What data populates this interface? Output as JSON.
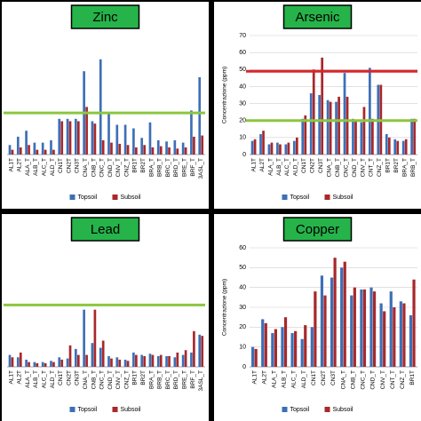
{
  "chart_data": [
    {
      "type": "bar",
      "title": "Zinc",
      "categories": [
        "AL1T",
        "AL2T",
        "ALA_T",
        "ALB_T",
        "ALC_T",
        "ALD_T",
        "CN1T",
        "CN2T",
        "CN3T",
        "CNA_T",
        "CNB_T",
        "CNC_T",
        "CND_T",
        "CNV_T",
        "CNZ_T",
        "BR1T",
        "BR2T",
        "BRA_T",
        "BRB_T",
        "BRC_T",
        "BRD_T",
        "BRE_T",
        "BRF_T",
        "3ASL_T"
      ],
      "series": [
        {
          "name": "Topsoil",
          "color": "#3d6fb6",
          "values": [
            8,
            15,
            20,
            10,
            10,
            12,
            30,
            30,
            30,
            70,
            28,
            80,
            35,
            25,
            25,
            22,
            14,
            27,
            12,
            11,
            12,
            10,
            37,
            65
          ]
        },
        {
          "name": "Subsoil",
          "color": "#a8282b",
          "values": [
            4,
            6,
            8,
            4,
            4,
            4,
            28,
            28,
            28,
            40,
            26,
            12,
            10,
            9,
            8,
            6,
            8,
            6,
            7,
            6,
            5,
            6,
            15,
            16
          ]
        }
      ],
      "ylim": [
        0,
        100
      ],
      "thresholds": [
        {
          "value": 35,
          "color": "#8cc63f"
        }
      ]
    },
    {
      "type": "bar",
      "title": "Arsenic",
      "y_label": "Concentrazione (ppm)",
      "categories": [
        "AL1T",
        "AL2T",
        "ALA_T",
        "ALB_T",
        "ALC_T",
        "ALD_T",
        "CN1T",
        "CN2T",
        "CN3T",
        "CNA_T",
        "CNB_T",
        "CNC_T",
        "CND_T",
        "CNV_T",
        "CNT_T",
        "CNZ_T",
        "BR1T",
        "BR2T",
        "BRA_T",
        "BRB_T"
      ],
      "series": [
        {
          "name": "Topsoil",
          "color": "#3d6fb6",
          "values": [
            8,
            12,
            6,
            7,
            6,
            8,
            21,
            36,
            35,
            32,
            31,
            48,
            21,
            19,
            51,
            41,
            12,
            9,
            8,
            21
          ]
        },
        {
          "name": "Subsoil",
          "color": "#a8282b",
          "values": [
            9,
            14,
            7,
            6,
            7,
            10,
            23,
            50,
            57,
            31,
            34,
            34,
            20,
            28,
            21,
            41,
            10,
            8,
            9,
            21
          ]
        }
      ],
      "ylim": [
        0,
        70
      ],
      "yticks": [
        0,
        10,
        20,
        30,
        40,
        50,
        60,
        70
      ],
      "grid": true,
      "thresholds": [
        {
          "value": 49,
          "color": "#d8262b"
        },
        {
          "value": 20,
          "color": "#8cc63f"
        }
      ]
    },
    {
      "type": "bar",
      "title": "Lead",
      "categories": [
        "AL1T",
        "AL2T",
        "ALA_T",
        "ALB_T",
        "ALC_T",
        "ALD_T",
        "CN1T",
        "CN2T",
        "CN3T",
        "CNA_T",
        "CNB_T",
        "CNC_T",
        "CND_T",
        "CNV_T",
        "CNZ_T",
        "BR1T",
        "BR2T",
        "BRA_T",
        "BRB_T",
        "BRC_T",
        "BRD_T",
        "BRE_T",
        "BRF_T",
        "3ASL_T"
      ],
      "series": [
        {
          "name": "Topsoil",
          "color": "#3d6fb6",
          "values": [
            10,
            8,
            6,
            4,
            4,
            5,
            8,
            7,
            15,
            48,
            20,
            16,
            9,
            8,
            6,
            12,
            10,
            11,
            9,
            9,
            8,
            10,
            12,
            27
          ]
        },
        {
          "name": "Subsoil",
          "color": "#a8282b",
          "values": [
            8,
            12,
            4,
            3,
            3,
            4,
            6,
            18,
            10,
            10,
            48,
            22,
            7,
            6,
            5,
            10,
            9,
            10,
            10,
            9,
            12,
            14,
            30,
            26
          ]
        }
      ],
      "ylim": [
        0,
        100
      ],
      "thresholds": [
        {
          "value": 52,
          "color": "#8cc63f"
        }
      ]
    },
    {
      "type": "bar",
      "title": "Copper",
      "y_label": "Concentrazione (ppm)",
      "categories": [
        "AL1T",
        "AL2T",
        "ALA_T",
        "ALB_T",
        "ALC_T",
        "ALD_T",
        "CN1T",
        "CN2T",
        "CN3T",
        "CNA_T",
        "CNB_T",
        "CNC_T",
        "CND_T",
        "CNV_T",
        "CNT_T",
        "CNZ_T",
        "BR1T"
      ],
      "series": [
        {
          "name": "Topsoil",
          "color": "#3d6fb6",
          "values": [
            10,
            24,
            17,
            20,
            17,
            14,
            20,
            46,
            45,
            50,
            36,
            39,
            40,
            32,
            38,
            33,
            26
          ]
        },
        {
          "name": "Subsoil",
          "color": "#a8282b",
          "values": [
            9,
            22,
            19,
            25,
            18,
            21,
            38,
            36,
            55,
            53,
            40,
            39,
            38,
            28,
            30,
            32,
            44
          ]
        }
      ],
      "ylim": [
        0,
        60
      ],
      "yticks": [
        0,
        10,
        20,
        30,
        40,
        50,
        60
      ],
      "grid": true
    }
  ]
}
